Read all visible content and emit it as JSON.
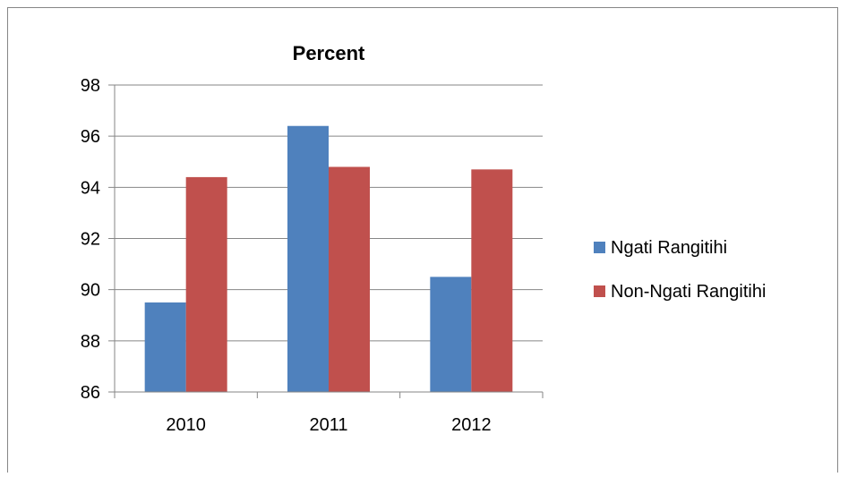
{
  "chart_data": {
    "type": "bar",
    "title": "Percent",
    "xlabel": "",
    "ylabel": "",
    "categories": [
      "2010",
      "2011",
      "2012"
    ],
    "series": [
      {
        "name": "Ngati Rangitihi",
        "values": [
          89.5,
          96.4,
          90.5
        ],
        "color": "#4F81BD"
      },
      {
        "name": "Non-Ngati Rangitihi",
        "values": [
          94.4,
          94.8,
          94.7
        ],
        "color": "#C0504D"
      }
    ],
    "ylim": [
      86,
      98
    ],
    "yticks": [
      "86",
      "88",
      "90",
      "92",
      "94",
      "96",
      "98"
    ],
    "grid": true,
    "legend_position": "right"
  }
}
